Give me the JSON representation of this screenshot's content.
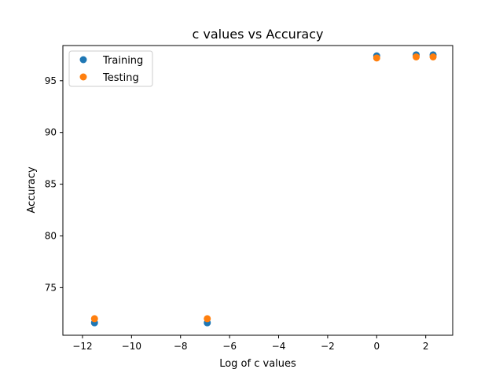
{
  "chart_data": {
    "type": "scatter",
    "title": "c values vs Accuracy",
    "xlabel": "Log of c values",
    "ylabel": "Accuracy",
    "xlim": [
      -12.8,
      3.1
    ],
    "ylim": [
      70.4,
      98.4
    ],
    "xticks": [
      -12,
      -10,
      -8,
      -6,
      -4,
      -2,
      0,
      2
    ],
    "xtick_labels": [
      "−12",
      "−10",
      "−8",
      "−6",
      "−4",
      "−2",
      "0",
      "2"
    ],
    "yticks": [
      75,
      80,
      85,
      90,
      95
    ],
    "ytick_labels": [
      "75",
      "80",
      "85",
      "90",
      "95"
    ],
    "grid": false,
    "legend_position": "top-left",
    "series": [
      {
        "name": "Training",
        "color": "#1f77b4",
        "x": [
          -11.51,
          -6.91,
          0.0,
          1.61,
          2.3
        ],
        "y": [
          71.6,
          71.6,
          97.4,
          97.5,
          97.5
        ]
      },
      {
        "name": "Testing",
        "color": "#ff7f0e",
        "x": [
          -11.51,
          -6.91,
          0.0,
          1.61,
          2.3
        ],
        "y": [
          72.0,
          72.0,
          97.2,
          97.3,
          97.3
        ]
      }
    ]
  }
}
